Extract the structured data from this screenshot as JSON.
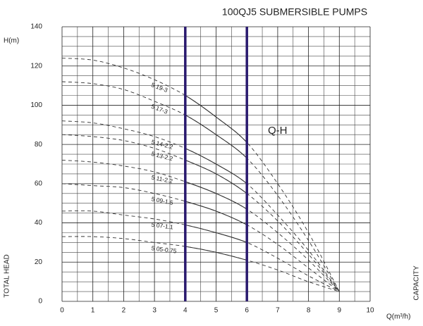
{
  "chart_data": {
    "type": "line",
    "title": "100QJ5 SUBMERSIBLE PUMPS",
    "y_label": "H(m)",
    "x_label": "Q(m³/h)",
    "y_axis_title": "TOTAL HEAD",
    "x_axis_title": "CAPACITY",
    "annotation": "Q-H",
    "x": [
      0,
      1,
      2,
      3,
      4,
      5,
      6,
      7,
      8,
      9
    ],
    "series": [
      {
        "name": "5 19-3",
        "color": "#333333",
        "values": [
          124,
          123,
          119,
          113,
          105,
          94,
          81,
          60,
          35,
          5
        ]
      },
      {
        "name": "5 17-3",
        "color": "#333333",
        "values": [
          112,
          111,
          108,
          102,
          95,
          85,
          73,
          54,
          31,
          5
        ]
      },
      {
        "name": "5 14-2.2",
        "color": "#333333",
        "values": [
          92,
          91,
          88,
          84,
          78,
          70,
          60,
          44,
          26,
          5
        ]
      },
      {
        "name": "5 13-2.2",
        "color": "#333333",
        "values": [
          85,
          84,
          82,
          78,
          72,
          65,
          55,
          41,
          24,
          5
        ]
      },
      {
        "name": "5 11-2.2",
        "color": "#333333",
        "values": [
          72,
          71,
          69,
          66,
          61,
          55,
          47,
          35,
          21,
          5
        ]
      },
      {
        "name": "5 09-1.5",
        "color": "#333333",
        "values": [
          60,
          59,
          58,
          55,
          51,
          46,
          39,
          29,
          17,
          5
        ]
      },
      {
        "name": "5 07-1.1",
        "color": "#333333",
        "values": [
          46,
          46,
          44,
          42,
          39,
          35,
          30,
          22,
          13,
          5
        ]
      },
      {
        "name": "5 05-0.75",
        "color": "#333333",
        "values": [
          33,
          33,
          32,
          30,
          28,
          25,
          21,
          16,
          10,
          5
        ]
      }
    ],
    "highlight_x": [
      4,
      6
    ],
    "highlight_color": "#2a1a6e",
    "xlim": [
      0,
      10
    ],
    "xticks": [
      0,
      1,
      2,
      3,
      4,
      5,
      6,
      7,
      8,
      9,
      10
    ],
    "ylim": [
      0,
      140
    ],
    "yticks": [
      0,
      20,
      40,
      60,
      80,
      100,
      120,
      140
    ],
    "grid": true
  }
}
